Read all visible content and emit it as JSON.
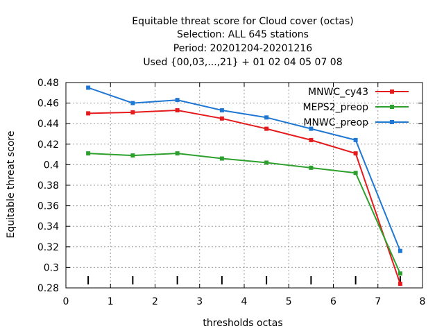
{
  "chart_data": {
    "type": "line",
    "title_lines": [
      "Equitable threat score  for Cloud cover (octas)",
      "Selection: ALL    645 stations",
      "Period: 20201204-20201216",
      "Used {00,03,...,21} + 01 02 04 05 07 08"
    ],
    "xlabel": "thresholds octas",
    "ylabel": "Equitable threat score",
    "xlim": [
      0,
      8
    ],
    "ylim": [
      0.28,
      0.48
    ],
    "xticks": [
      "0",
      "1",
      "2",
      "3",
      "4",
      "5",
      "6",
      "7",
      "8"
    ],
    "yticks": [
      "0.28",
      "0.3",
      "0.32",
      "0.34",
      "0.36",
      "0.38",
      "0.4",
      "0.42",
      "0.44",
      "0.46",
      "0.48"
    ],
    "grid": true,
    "legend_position": "top-right",
    "x": [
      0.5,
      1.5,
      2.5,
      3.5,
      4.5,
      5.5,
      6.5,
      7.5
    ],
    "series": [
      {
        "name": "MNWC_cy43",
        "color": "#e41a1c",
        "values": [
          0.45,
          0.451,
          0.453,
          0.445,
          0.435,
          0.424,
          0.411,
          0.284
        ]
      },
      {
        "name": "MEPS2_preop",
        "color": "#2ca02c",
        "values": [
          0.411,
          0.409,
          0.411,
          0.406,
          0.402,
          0.397,
          0.392,
          0.294
        ]
      },
      {
        "name": "MNWC_preop",
        "color": "#1f77d4",
        "values": [
          0.475,
          0.46,
          0.463,
          0.453,
          0.446,
          0.435,
          0.424,
          0.316
        ]
      }
    ]
  }
}
